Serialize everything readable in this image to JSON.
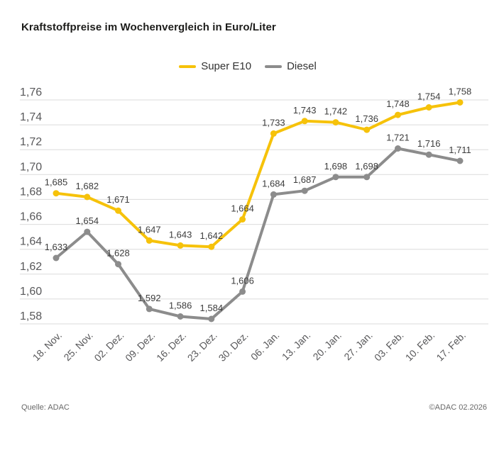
{
  "header": {
    "title": "Kraftstoffpreise im Wochenvergleich in Euro/Liter"
  },
  "footer": {
    "source": "Quelle: ADAC",
    "copyright": "©ADAC 02.2026"
  },
  "chart_data": {
    "type": "line",
    "title": "Kraftstoffpreise im Wochenvergleich in Euro/Liter",
    "xlabel": "",
    "ylabel": "Euro/Liter",
    "ylim": [
      1.58,
      1.76
    ],
    "y_step": 0.02,
    "grid": "horizontal",
    "grid_color": "#dbdbdb",
    "legend_position": "top-center",
    "decimal_separator": ",",
    "x_tick_labels": [
      "18. Nov.",
      "25. Nov.",
      "02. Dez.",
      "09. Dez.",
      "16. Dez.",
      "23. Dez.",
      "30. Dez.",
      "06. Jan.",
      "13. Jan.",
      "20. Jan.",
      "27. Jan.",
      "03. Feb.",
      "10. Feb.",
      "17. Feb."
    ],
    "y_tick_labels": [
      "1,76",
      "1,74",
      "1,72",
      "1,70",
      "1,68",
      "1,66",
      "1,64",
      "1,62",
      "1,60",
      "1,58"
    ],
    "series": [
      {
        "name": "Super E10",
        "color": "#f6c20a",
        "values": [
          1.685,
          1.682,
          1.671,
          1.647,
          1.643,
          1.642,
          1.664,
          1.733,
          1.743,
          1.742,
          1.736,
          1.748,
          1.754,
          1.758
        ],
        "labels": [
          "1,685",
          "1,682",
          "1,671",
          "1,647",
          "1,643",
          "1,642",
          "1,664",
          "1,733",
          "1,743",
          "1,742",
          "1,736",
          "1,748",
          "1,754",
          "1,758"
        ]
      },
      {
        "name": "Diesel",
        "color": "#8c8c8c",
        "values": [
          1.633,
          1.654,
          1.628,
          1.592,
          1.586,
          1.584,
          1.606,
          1.684,
          1.687,
          1.698,
          1.698,
          1.721,
          1.716,
          1.711
        ],
        "labels": [
          "1,633",
          "1,654",
          "1,628",
          "1,592",
          "1,586",
          "1,584",
          "1,606",
          "1,684",
          "1,687",
          "1,698",
          "1,698",
          "1,721",
          "1,716",
          "1,711"
        ]
      }
    ]
  }
}
